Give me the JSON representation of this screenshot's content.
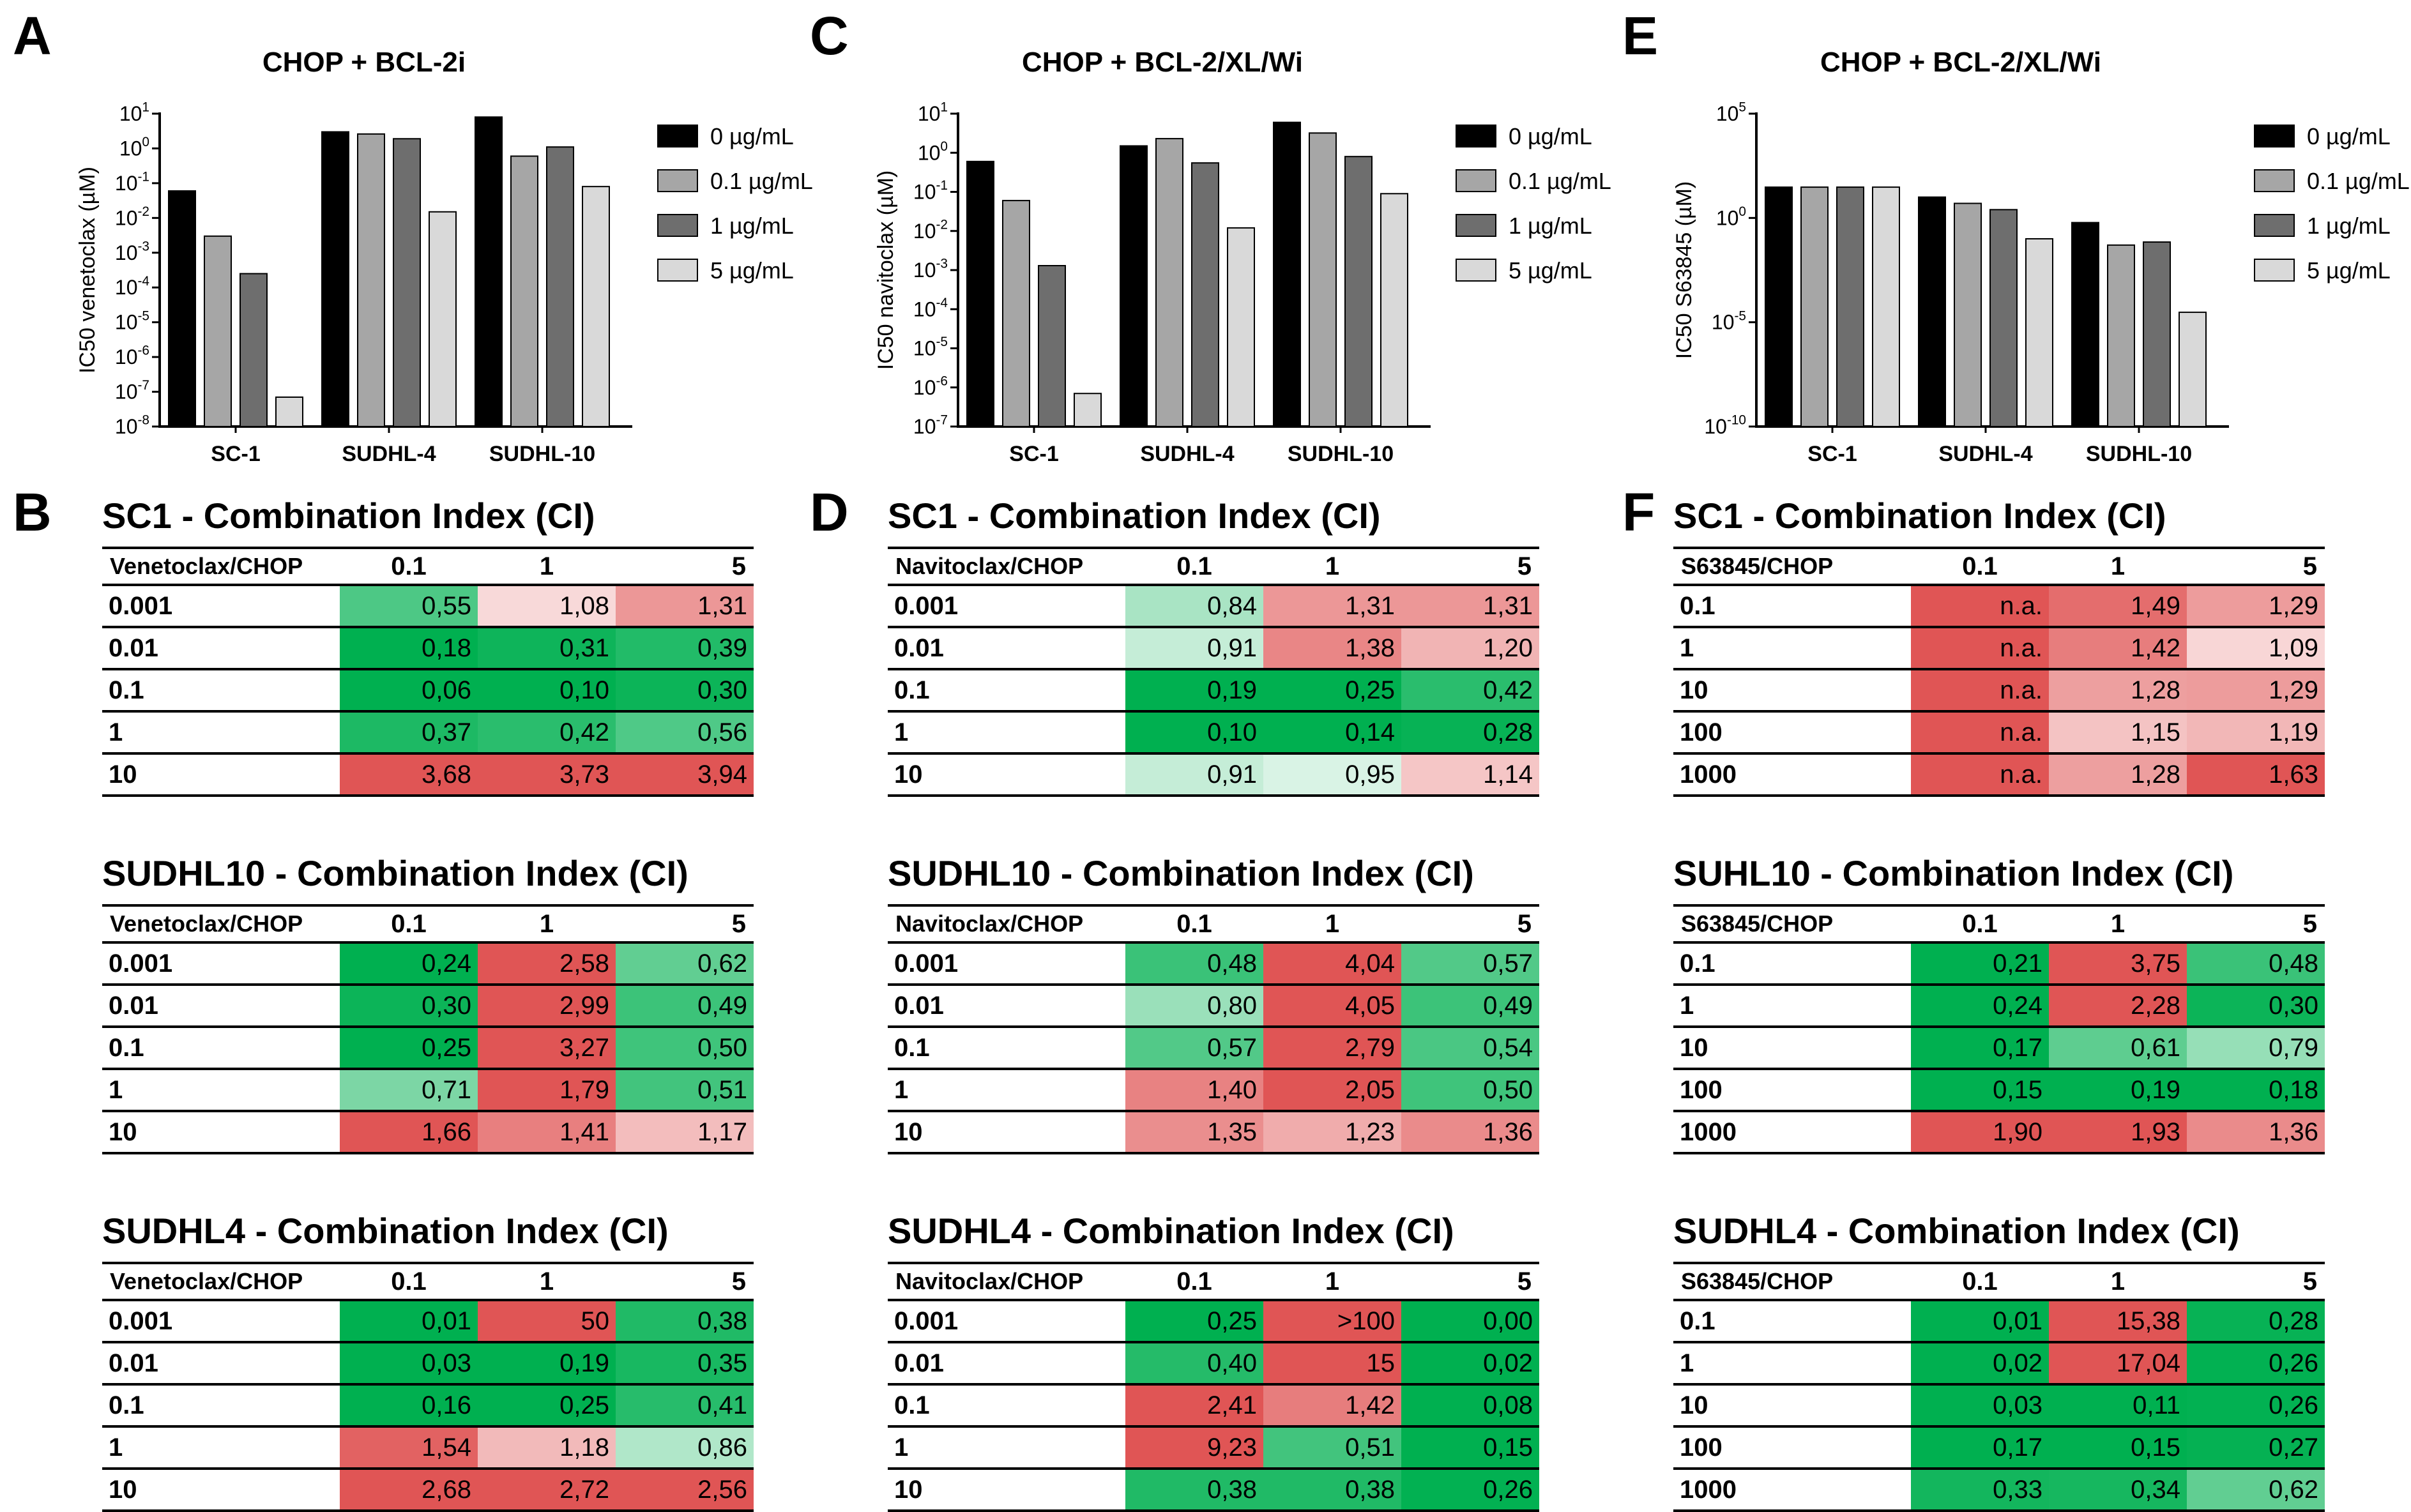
{
  "panel_letters": {
    "A": "A",
    "B": "B",
    "C": "C",
    "D": "D",
    "E": "E",
    "F": "F"
  },
  "colors": {
    "s0": "#000000",
    "s1": "#a6a6a6",
    "s2": "#6e6e6e",
    "s3": "#d9d9d9",
    "red": "#e05555",
    "green": "#00b050",
    "pale": "#ffffff"
  },
  "chart_data": [
    {
      "id": "A",
      "type": "bar",
      "title": "CHOP + BCL-2i",
      "ylabel": "IC50 venetoclax (µM)",
      "yscale": "log",
      "ylim_exp": [
        -8,
        1
      ],
      "tick_step": 1,
      "tick_labels": [
        "10-8",
        "10-7",
        "10-6",
        "10-5",
        "10-4",
        "10-3",
        "10-2",
        "10-1",
        "100",
        "101"
      ],
      "categories": [
        "SC-1",
        "SUDHL-4",
        "SUDHL-10"
      ],
      "series": [
        {
          "name": "0 µg/mL",
          "values": [
            0.06,
            3.0,
            8.0
          ]
        },
        {
          "name": "0.1 µg/mL",
          "values": [
            0.003,
            2.6,
            0.6
          ]
        },
        {
          "name": "1 µg/mL",
          "values": [
            0.00025,
            1.9,
            1.1
          ]
        },
        {
          "name": "5 µg/mL",
          "values": [
            7e-08,
            0.015,
            0.08
          ]
        }
      ]
    },
    {
      "id": "C",
      "type": "bar",
      "title": "CHOP + BCL-2/XL/Wi",
      "ylabel": "IC50 navitoclax (µM)",
      "yscale": "log",
      "ylim_exp": [
        -7,
        1
      ],
      "tick_step": 1,
      "tick_labels": [
        "10-7",
        "10-6",
        "10-5",
        "10-4",
        "10-3",
        "10-2",
        "10-1",
        "100",
        "101"
      ],
      "categories": [
        "SC-1",
        "SUDHL-4",
        "SUDHL-10"
      ],
      "series": [
        {
          "name": "0 µg/mL",
          "values": [
            0.6,
            1.5,
            6.0
          ]
        },
        {
          "name": "0.1 µg/mL",
          "values": [
            0.06,
            2.3,
            3.2
          ]
        },
        {
          "name": "1 µg/mL",
          "values": [
            0.0013,
            0.55,
            0.8
          ]
        },
        {
          "name": "5 µg/mL",
          "values": [
            7e-07,
            0.012,
            0.09
          ]
        }
      ]
    },
    {
      "id": "E",
      "type": "bar",
      "title": "CHOP + BCL-2/XL/Wi",
      "ylabel": "IC50 S63845 (µM)",
      "yscale": "log",
      "ylim_exp": [
        -10,
        5
      ],
      "tick_step": 5,
      "tick_labels": [
        "10-10",
        "10-5",
        "100",
        "105"
      ],
      "categories": [
        "SC-1",
        "SUDHL-4",
        "SUDHL-10"
      ],
      "series": [
        {
          "name": "0 µg/mL",
          "values": [
            30,
            10,
            0.6
          ]
        },
        {
          "name": "0.1 µg/mL",
          "values": [
            30,
            5,
            0.05
          ]
        },
        {
          "name": "1 µg/mL",
          "values": [
            30,
            2.5,
            0.07
          ]
        },
        {
          "name": "5 µg/mL",
          "values": [
            30,
            0.1,
            3e-05
          ]
        }
      ]
    }
  ],
  "legend_labels": [
    "0 µg/mL",
    "0.1 µg/mL",
    "1 µg/mL",
    "5 µg/mL"
  ],
  "tables": {
    "B": [
      {
        "title": "SC1 - Combination Index (CI)",
        "corner": "Venetoclax/CHOP",
        "cols": [
          "0.1",
          "1",
          "5"
        ],
        "rows": [
          [
            "0.001",
            "0,55",
            "1,08",
            "1,31"
          ],
          [
            "0.01",
            "0,18",
            "0,31",
            "0,39"
          ],
          [
            "0.1",
            "0,06",
            "0,10",
            "0,30"
          ],
          [
            "1",
            "0,37",
            "0,42",
            "0,56"
          ],
          [
            "10",
            "3,68",
            "3,73",
            "3,94"
          ]
        ]
      },
      {
        "title": "SUDHL10 - Combination Index (CI)",
        "corner": "Venetoclax/CHOP",
        "cols": [
          "0.1",
          "1",
          "5"
        ],
        "rows": [
          [
            "0.001",
            "0,24",
            "2,58",
            "0,62"
          ],
          [
            "0.01",
            "0,30",
            "2,99",
            "0,49"
          ],
          [
            "0.1",
            "0,25",
            "3,27",
            "0,50"
          ],
          [
            "1",
            "0,71",
            "1,79",
            "0,51"
          ],
          [
            "10",
            "1,66",
            "1,41",
            "1,17"
          ]
        ]
      },
      {
        "title": "SUDHL4 - Combination Index (CI)",
        "corner": "Venetoclax/CHOP",
        "cols": [
          "0.1",
          "1",
          "5"
        ],
        "rows": [
          [
            "0.001",
            "0,01",
            "50",
            "0,38"
          ],
          [
            "0.01",
            "0,03",
            "0,19",
            "0,35"
          ],
          [
            "0.1",
            "0,16",
            "0,25",
            "0,41"
          ],
          [
            "1",
            "1,54",
            "1,18",
            "0,86"
          ],
          [
            "10",
            "2,68",
            "2,72",
            "2,56"
          ]
        ]
      }
    ],
    "D": [
      {
        "title": "SC1 - Combination Index (CI)",
        "corner": "Navitoclax/CHOP",
        "cols": [
          "0.1",
          "1",
          "5"
        ],
        "rows": [
          [
            "0.001",
            "0,84",
            "1,31",
            "1,31"
          ],
          [
            "0.01",
            "0,91",
            "1,38",
            "1,20"
          ],
          [
            "0.1",
            "0,19",
            "0,25",
            "0,42"
          ],
          [
            "1",
            "0,10",
            "0,14",
            "0,28"
          ],
          [
            "10",
            "0,91",
            "0,95",
            "1,14"
          ]
        ]
      },
      {
        "title": "SUDHL10 - Combination Index (CI)",
        "corner": "Navitoclax/CHOP",
        "cols": [
          "0.1",
          "1",
          "5"
        ],
        "rows": [
          [
            "0.001",
            "0,48",
            "4,04",
            "0,57"
          ],
          [
            "0.01",
            "0,80",
            "4,05",
            "0,49"
          ],
          [
            "0.1",
            "0,57",
            "2,79",
            "0,54"
          ],
          [
            "1",
            "1,40",
            "2,05",
            "0,50"
          ],
          [
            "10",
            "1,35",
            "1,23",
            "1,36"
          ]
        ]
      },
      {
        "title": "SUDHL4 - Combination Index (CI)",
        "corner": "Navitoclax/CHOP",
        "cols": [
          "0.1",
          "1",
          "5"
        ],
        "rows": [
          [
            "0.001",
            "0,25",
            ">100",
            "0,00"
          ],
          [
            "0.01",
            "0,40",
            "15",
            "0,02"
          ],
          [
            "0.1",
            "2,41",
            "1,42",
            "0,08"
          ],
          [
            "1",
            "9,23",
            "0,51",
            "0,15"
          ],
          [
            "10",
            "0,38",
            "0,38",
            "0,26"
          ]
        ]
      }
    ],
    "F": [
      {
        "title": "SC1 - Combination Index (CI)",
        "corner": "S63845/CHOP",
        "cols": [
          "0.1",
          "1",
          "5"
        ],
        "rows": [
          [
            "0.1",
            "n.a.",
            "1,49",
            "1,29"
          ],
          [
            "1",
            "n.a.",
            "1,42",
            "1,09"
          ],
          [
            "10",
            "n.a.",
            "1,28",
            "1,29"
          ],
          [
            "100",
            "n.a.",
            "1,15",
            "1,19"
          ],
          [
            "1000",
            "n.a.",
            "1,28",
            "1,63"
          ]
        ]
      },
      {
        "title": "SUHL10 - Combination Index (CI)",
        "corner": "S63845/CHOP",
        "cols": [
          "0.1",
          "1",
          "5"
        ],
        "rows": [
          [
            "0.1",
            "0,21",
            "3,75",
            "0,48"
          ],
          [
            "1",
            "0,24",
            "2,28",
            "0,30"
          ],
          [
            "10",
            "0,17",
            "0,61",
            "0,79"
          ],
          [
            "100",
            "0,15",
            "0,19",
            "0,18"
          ],
          [
            "1000",
            "1,90",
            "1,93",
            "1,36"
          ]
        ]
      },
      {
        "title": "SUDHL4 - Combination Index (CI)",
        "corner": "S63845/CHOP",
        "cols": [
          "0.1",
          "1",
          "5"
        ],
        "rows": [
          [
            "0.1",
            "0,01",
            "15,38",
            "0,28"
          ],
          [
            "1",
            "0,02",
            "17,04",
            "0,26"
          ],
          [
            "10",
            "0,03",
            "0,11",
            "0,26"
          ],
          [
            "100",
            "0,17",
            "0,15",
            "0,27"
          ],
          [
            "1000",
            "0,33",
            "0,34",
            "0,62"
          ]
        ]
      }
    ]
  }
}
